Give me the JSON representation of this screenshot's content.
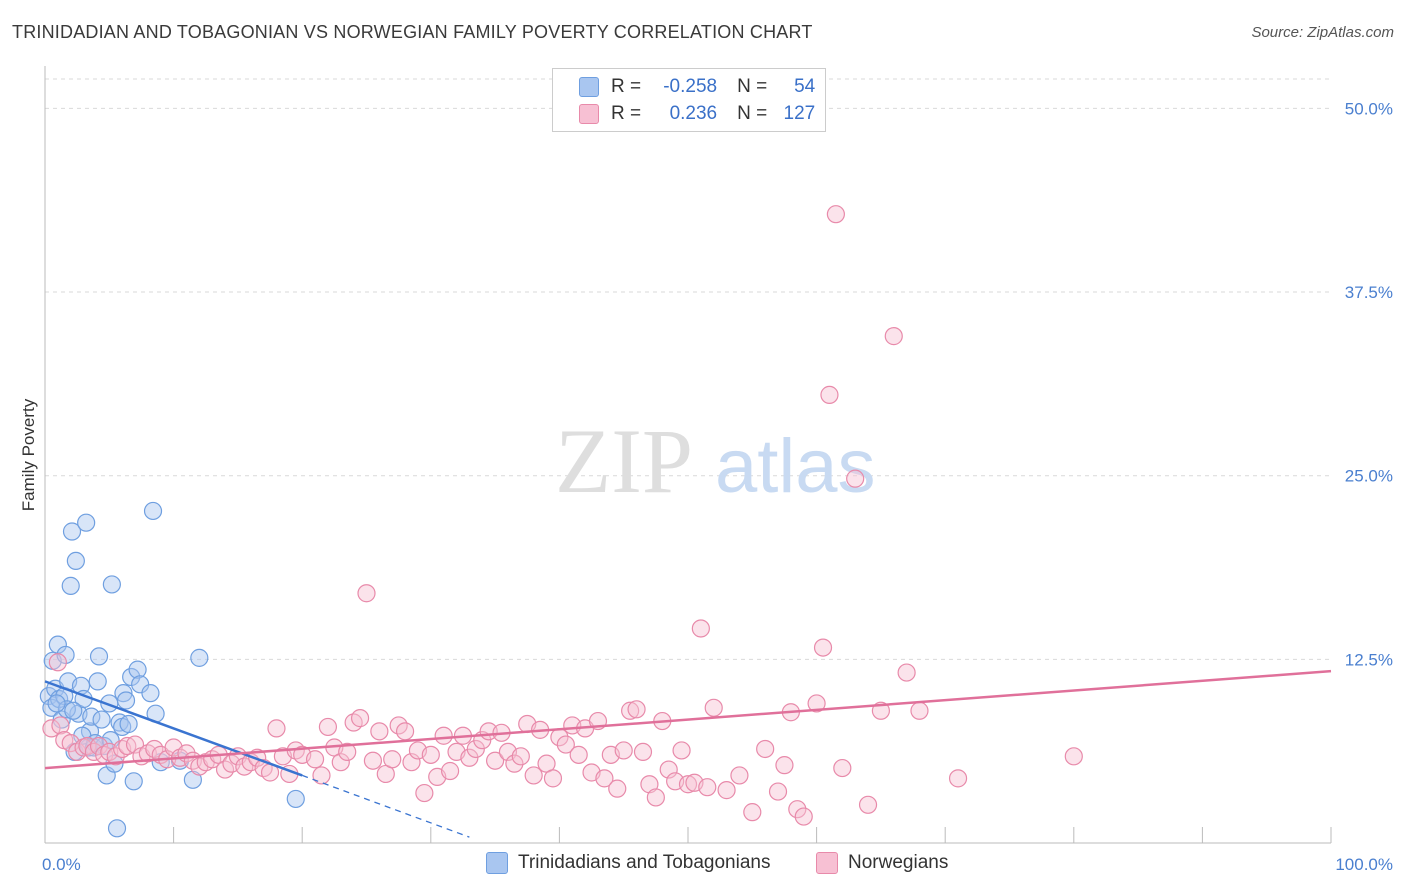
{
  "title": "TRINIDADIAN AND TOBAGONIAN VS NORWEGIAN FAMILY POVERTY CORRELATION CHART",
  "source": "Source: ZipAtlas.com",
  "watermark": {
    "zip": "ZIP",
    "atlas": "atlas"
  },
  "legend": {
    "r_label": "R =",
    "n_label": "N =",
    "rows": [
      {
        "r": "-0.258",
        "n": "54",
        "color": "#a9c6f0",
        "border": "#6f9fe0"
      },
      {
        "r": "0.236",
        "n": "127",
        "color": "#f7c0d3",
        "border": "#e88aaa"
      }
    ]
  },
  "bottom_legend": [
    "Trinidadians and Tobagonians",
    "Norwegians"
  ],
  "chart_data": {
    "type": "scatter",
    "ylabel": "Family Poverty",
    "xlabel": "",
    "xlim": [
      0,
      100
    ],
    "ylim": [
      0,
      52
    ],
    "x_tick_labels": [
      {
        "value": 0,
        "label": "0.0%"
      },
      {
        "value": 100,
        "label": "100.0%"
      }
    ],
    "y_tick_labels": [
      {
        "value": 12.5,
        "label": "12.5%"
      },
      {
        "value": 25.0,
        "label": "25.0%"
      },
      {
        "value": 37.5,
        "label": "37.5%"
      },
      {
        "value": 50.0,
        "label": "50.0%"
      }
    ],
    "grid": "horizontal-dashed",
    "series": [
      {
        "name": "Trinidadians and Tobagonians",
        "color": "#6f9fe0",
        "fill": "#a9c6f0",
        "trend": {
          "x0": 0,
          "y0": 11.0,
          "x1": 20,
          "y1": 4.6,
          "dash_to_x": 33,
          "dash_to_y": 0.4
        },
        "points": [
          [
            0.3,
            10.0
          ],
          [
            0.5,
            9.2
          ],
          [
            0.6,
            12.4
          ],
          [
            0.8,
            10.5
          ],
          [
            1.0,
            13.5
          ],
          [
            1.1,
            9.8
          ],
          [
            1.3,
            8.4
          ],
          [
            1.5,
            10.0
          ],
          [
            1.6,
            12.8
          ],
          [
            1.8,
            11.0
          ],
          [
            2.0,
            17.5
          ],
          [
            2.1,
            21.2
          ],
          [
            2.3,
            6.2
          ],
          [
            2.4,
            19.2
          ],
          [
            2.6,
            8.8
          ],
          [
            2.8,
            10.7
          ],
          [
            3.0,
            9.8
          ],
          [
            3.2,
            21.8
          ],
          [
            3.4,
            6.5
          ],
          [
            3.5,
            7.6
          ],
          [
            3.8,
            6.5
          ],
          [
            3.6,
            8.6
          ],
          [
            4.1,
            11.0
          ],
          [
            4.2,
            12.7
          ],
          [
            4.4,
            8.4
          ],
          [
            4.6,
            6.6
          ],
          [
            4.8,
            4.6
          ],
          [
            5.0,
            9.5
          ],
          [
            5.2,
            17.6
          ],
          [
            5.4,
            5.4
          ],
          [
            5.6,
            1.0
          ],
          [
            5.8,
            8.2
          ],
          [
            6.0,
            7.9
          ],
          [
            6.1,
            10.2
          ],
          [
            6.3,
            9.7
          ],
          [
            6.5,
            8.1
          ],
          [
            6.7,
            11.3
          ],
          [
            6.9,
            4.2
          ],
          [
            7.2,
            11.8
          ],
          [
            7.4,
            10.8
          ],
          [
            8.2,
            10.2
          ],
          [
            8.4,
            22.6
          ],
          [
            8.6,
            8.8
          ],
          [
            9.0,
            5.5
          ],
          [
            10.5,
            5.6
          ],
          [
            11.5,
            4.3
          ],
          [
            12.0,
            12.6
          ],
          [
            19.5,
            3.0
          ],
          [
            2.9,
            7.3
          ],
          [
            1.7,
            9.1
          ],
          [
            3.9,
            6.8
          ],
          [
            0.9,
            9.5
          ],
          [
            5.1,
            7.0
          ],
          [
            2.2,
            9.0
          ]
        ]
      },
      {
        "name": "Norwegians",
        "color": "#e88aaa",
        "fill": "#f7c0d3",
        "trend": {
          "x0": 0,
          "y0": 5.1,
          "x1": 100,
          "y1": 11.7
        },
        "points": [
          [
            0.5,
            7.8
          ],
          [
            1.0,
            12.3
          ],
          [
            1.2,
            8.0
          ],
          [
            1.5,
            7.0
          ],
          [
            2.0,
            6.8
          ],
          [
            2.5,
            6.2
          ],
          [
            3.0,
            6.5
          ],
          [
            3.3,
            6.6
          ],
          [
            3.8,
            6.2
          ],
          [
            4.2,
            6.6
          ],
          [
            4.6,
            6.0
          ],
          [
            5.0,
            6.2
          ],
          [
            5.5,
            5.9
          ],
          [
            6.0,
            6.4
          ],
          [
            6.4,
            6.6
          ],
          [
            7.0,
            6.7
          ],
          [
            7.5,
            5.9
          ],
          [
            8.0,
            6.1
          ],
          [
            8.5,
            6.4
          ],
          [
            9.0,
            6.0
          ],
          [
            9.5,
            5.7
          ],
          [
            10.0,
            6.5
          ],
          [
            10.5,
            5.8
          ],
          [
            11.0,
            6.1
          ],
          [
            11.5,
            5.6
          ],
          [
            12.0,
            5.2
          ],
          [
            12.5,
            5.5
          ],
          [
            13.0,
            5.7
          ],
          [
            13.5,
            6.0
          ],
          [
            14.0,
            5.0
          ],
          [
            14.5,
            5.4
          ],
          [
            15.0,
            5.9
          ],
          [
            15.5,
            5.2
          ],
          [
            16.0,
            5.5
          ],
          [
            16.5,
            5.8
          ],
          [
            17.0,
            5.1
          ],
          [
            17.5,
            4.8
          ],
          [
            18.0,
            7.8
          ],
          [
            18.5,
            5.9
          ],
          [
            19.0,
            4.7
          ],
          [
            19.5,
            6.3
          ],
          [
            20.0,
            6.0
          ],
          [
            21.0,
            5.7
          ],
          [
            21.5,
            4.6
          ],
          [
            22.0,
            7.9
          ],
          [
            22.5,
            6.5
          ],
          [
            23.0,
            5.5
          ],
          [
            23.5,
            6.2
          ],
          [
            24.0,
            8.2
          ],
          [
            24.5,
            8.5
          ],
          [
            25.0,
            17.0
          ],
          [
            25.5,
            5.6
          ],
          [
            26.0,
            7.6
          ],
          [
            26.5,
            4.7
          ],
          [
            27.0,
            5.7
          ],
          [
            27.5,
            8.0
          ],
          [
            28.0,
            7.6
          ],
          [
            28.5,
            5.5
          ],
          [
            29.0,
            6.3
          ],
          [
            29.5,
            3.4
          ],
          [
            30.0,
            6.0
          ],
          [
            30.5,
            4.5
          ],
          [
            31.0,
            7.3
          ],
          [
            31.5,
            4.9
          ],
          [
            32.0,
            6.2
          ],
          [
            32.5,
            7.3
          ],
          [
            33.0,
            5.8
          ],
          [
            33.5,
            6.4
          ],
          [
            34.0,
            7.0
          ],
          [
            34.5,
            7.6
          ],
          [
            35.0,
            5.6
          ],
          [
            35.5,
            7.5
          ],
          [
            36.0,
            6.2
          ],
          [
            36.5,
            5.4
          ],
          [
            37.0,
            5.9
          ],
          [
            37.5,
            8.1
          ],
          [
            38.0,
            4.6
          ],
          [
            38.5,
            7.7
          ],
          [
            39.0,
            5.4
          ],
          [
            39.5,
            4.4
          ],
          [
            40.0,
            7.2
          ],
          [
            40.5,
            6.7
          ],
          [
            41.0,
            8.0
          ],
          [
            41.5,
            6.0
          ],
          [
            42.0,
            7.8
          ],
          [
            42.5,
            4.8
          ],
          [
            43.0,
            8.3
          ],
          [
            43.5,
            4.4
          ],
          [
            44.0,
            6.0
          ],
          [
            44.5,
            3.7
          ],
          [
            45.0,
            6.3
          ],
          [
            45.5,
            9.0
          ],
          [
            46.0,
            9.1
          ],
          [
            46.5,
            6.2
          ],
          [
            47.0,
            4.0
          ],
          [
            47.5,
            3.1
          ],
          [
            48.0,
            8.3
          ],
          [
            48.5,
            5.0
          ],
          [
            49.0,
            4.2
          ],
          [
            49.5,
            6.3
          ],
          [
            50.0,
            4.0
          ],
          [
            50.5,
            4.1
          ],
          [
            51.0,
            14.6
          ],
          [
            51.5,
            3.8
          ],
          [
            52.0,
            9.2
          ],
          [
            53.0,
            3.6
          ],
          [
            54.0,
            4.6
          ],
          [
            55.0,
            2.1
          ],
          [
            56.0,
            6.4
          ],
          [
            57.0,
            3.5
          ],
          [
            57.5,
            5.3
          ],
          [
            58.0,
            8.9
          ],
          [
            58.5,
            2.3
          ],
          [
            59.0,
            1.8
          ],
          [
            60.0,
            9.5
          ],
          [
            60.5,
            13.3
          ],
          [
            61.0,
            30.5
          ],
          [
            61.5,
            42.8
          ],
          [
            62.0,
            5.1
          ],
          [
            63.0,
            24.8
          ],
          [
            64.0,
            2.6
          ],
          [
            65.0,
            9.0
          ],
          [
            66.0,
            34.5
          ],
          [
            67.0,
            11.6
          ],
          [
            68.0,
            9.0
          ],
          [
            71.0,
            4.4
          ],
          [
            80.0,
            5.9
          ]
        ]
      }
    ]
  }
}
